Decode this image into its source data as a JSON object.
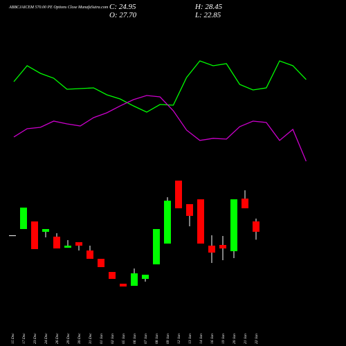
{
  "chart_data": {
    "type": "candlestick",
    "title": "ABBCJAICEM 570.00 PE Options Close MunafaSutra.com",
    "header": {
      "close": "C: 24.95",
      "high": "H: 28.45",
      "open": "O: 27.70",
      "low": "L: 22.85"
    },
    "categories": [
      "15 Dec",
      "17 Dec",
      "23 Dec",
      "24 Dec",
      "26 Dec",
      "29 Dec",
      "30 Dec",
      "31 Dec",
      "01 Jan",
      "02 Jan",
      "05 Jan",
      "06 Jan",
      "07 Jan",
      "08 Jan",
      "09 Jan",
      "12 Jan",
      "13 Jan",
      "14 Jan",
      "16 Jan",
      "19 Jan",
      "20 Jan",
      "21 Jan",
      "22 Jan"
    ],
    "open": [
      24.0,
      25.67,
      27.69,
      24.94,
      23.65,
      20.72,
      22.19,
      19.98,
      17.78,
      14.29,
      11.18,
      10.62,
      12.46,
      16.31,
      21.82,
      38.52,
      32.28,
      33.56,
      21.27,
      21.45,
      19.8,
      33.75,
      27.7
    ],
    "high": [
      24.0,
      31.36,
      27.69,
      25.67,
      24.57,
      22.74,
      22.19,
      21.27,
      17.78,
      14.29,
      11.18,
      15.21,
      13.56,
      25.67,
      34.11,
      38.52,
      32.28,
      33.56,
      24.02,
      23.84,
      33.56,
      35.95,
      28.45
    ],
    "low": [
      24.0,
      25.67,
      20.35,
      23.47,
      20.53,
      20.72,
      19.98,
      17.78,
      15.58,
      12.46,
      10.44,
      10.62,
      11.73,
      16.31,
      21.82,
      31.18,
      26.41,
      21.82,
      16.68,
      17.41,
      17.96,
      31.18,
      22.85
    ],
    "close": [
      24.0,
      31.36,
      20.35,
      25.67,
      20.53,
      21.27,
      21.27,
      17.78,
      15.58,
      12.46,
      10.44,
      13.93,
      13.56,
      25.67,
      33.2,
      31.18,
      29.16,
      21.82,
      19.43,
      20.53,
      33.56,
      31.18,
      24.95
    ],
    "up_color": "#00ff00",
    "down_color": "#ff0000",
    "series": [
      {
        "color": "#00ff00",
        "values": [
          64.76,
          68.98,
          66.96,
          65.67,
          62.74,
          62.92,
          63.11,
          61.27,
          60.17,
          58.33,
          56.68,
          58.7,
          58.52,
          65.86,
          70.26,
          68.98,
          69.53,
          64.02,
          62.56,
          63.11,
          70.26,
          68.98,
          65.31
        ]
      },
      {
        "color": "#cc00cc",
        "values": [
          50.08,
          52.28,
          52.65,
          54.3,
          53.56,
          53.01,
          55.22,
          56.5,
          58.33,
          59.99,
          61.09,
          60.72,
          57.05,
          51.92,
          49.17,
          49.72,
          49.53,
          52.83,
          54.3,
          53.93,
          49.17,
          52.1,
          43.65
        ]
      }
    ],
    "ylim": [
      2,
      75.4
    ]
  }
}
